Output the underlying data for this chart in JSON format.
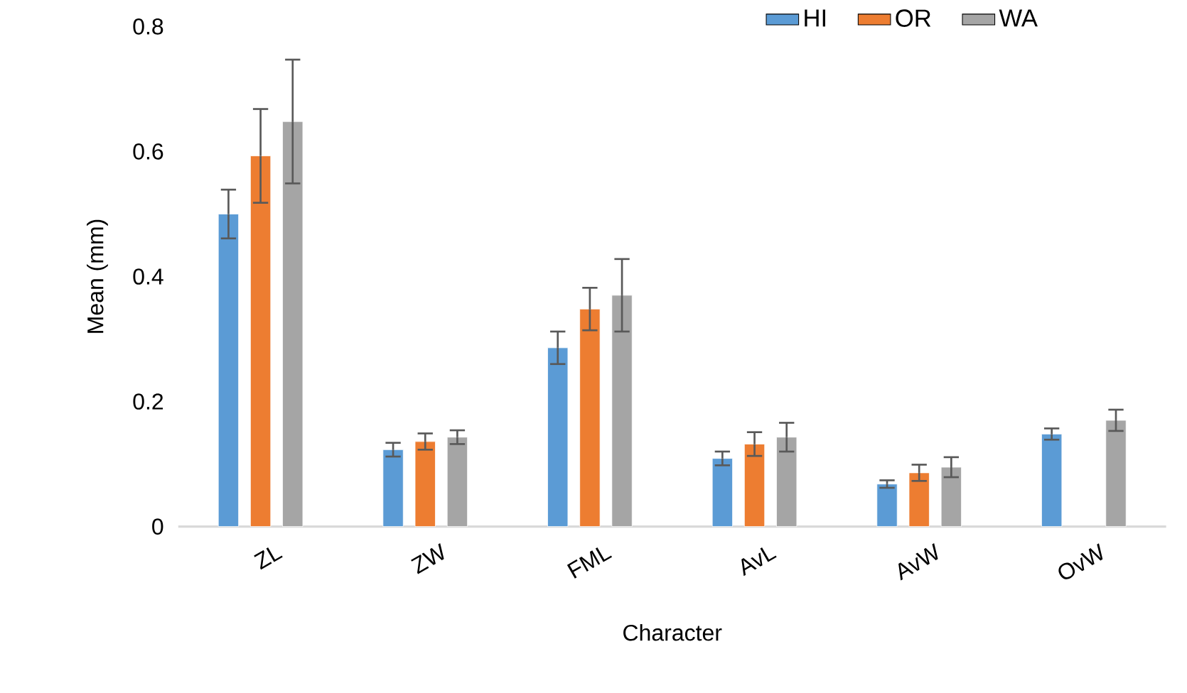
{
  "chart_data": {
    "type": "bar",
    "xlabel": "Character",
    "ylabel": "Mean (mm)",
    "categories": [
      "ZL",
      "ZW",
      "FML",
      "AvL",
      "AvW",
      "OvW"
    ],
    "series": [
      {
        "name": "HI",
        "color": "#5b9bd5",
        "values": [
          0.5,
          0.123,
          0.286,
          0.109,
          0.068,
          0.148
        ],
        "errors": [
          0.039,
          0.011,
          0.026,
          0.011,
          0.006,
          0.009
        ]
      },
      {
        "name": "OR",
        "color": "#ed7d31",
        "values": [
          0.593,
          0.136,
          0.348,
          0.132,
          0.086,
          null
        ],
        "errors": [
          0.075,
          0.013,
          0.034,
          0.019,
          0.013,
          null
        ]
      },
      {
        "name": "WA",
        "color": "#a5a5a5",
        "values": [
          0.648,
          0.143,
          0.37,
          0.143,
          0.095,
          0.17
        ],
        "errors": [
          0.099,
          0.011,
          0.058,
          0.023,
          0.016,
          0.017
        ]
      }
    ],
    "ylim": [
      0,
      0.8
    ],
    "yticks": [
      0,
      0.2,
      0.4,
      0.6,
      0.8
    ],
    "grid": false,
    "legend": "top right"
  }
}
